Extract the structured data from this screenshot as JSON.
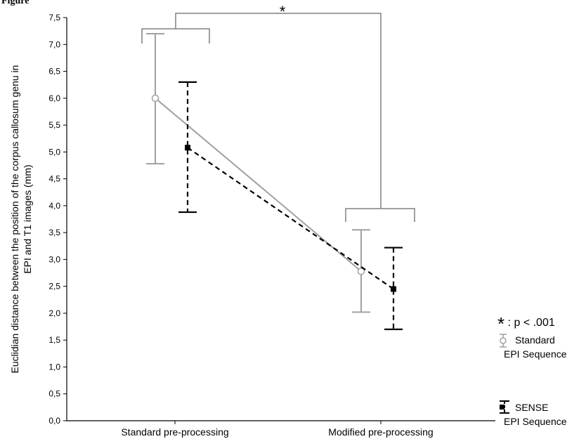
{
  "figure_label": "Figure",
  "chart_data": {
    "type": "line",
    "categories": [
      "Standard pre-processing",
      "Modified pre-processing"
    ],
    "ylabel_lines": [
      "Euclidian distance between the position of the corpus callosum genu in",
      "EPI and T1 images (mm)"
    ],
    "xlabel": "",
    "ylim": [
      0,
      7.5
    ],
    "yticks": [
      "0,0",
      "0,5",
      "1,0",
      "1,5",
      "2,0",
      "2,5",
      "3,0",
      "3,5",
      "4,0",
      "4,5",
      "5,0",
      "5,5",
      "6,0",
      "6,5",
      "7,0",
      "7,5"
    ],
    "series": [
      {
        "name": "Standard EPI Sequence",
        "values": [
          6.0,
          2.78
        ],
        "err_low": [
          4.78,
          2.02
        ],
        "err_high": [
          7.2,
          3.55
        ],
        "color": "#a0a0a0",
        "style": "solid",
        "marker": "open-circle"
      },
      {
        "name": "SENSE EPI Sequence",
        "values": [
          5.08,
          2.45
        ],
        "err_low": [
          3.88,
          1.7
        ],
        "err_high": [
          6.3,
          3.22
        ],
        "color": "#000000",
        "style": "dashed",
        "marker": "filled-square"
      }
    ],
    "annotation": {
      "text": "*",
      "between": [
        "Standard pre-processing",
        "Modified pre-processing"
      ]
    },
    "significance_note": {
      "symbol": "*",
      "text": ": p < .001"
    },
    "legend": {
      "placement": "right",
      "items": [
        {
          "line1": "Standard",
          "line2": "EPI Sequence"
        },
        {
          "line1": "SENSE",
          "line2": "EPI Sequence"
        }
      ]
    }
  }
}
